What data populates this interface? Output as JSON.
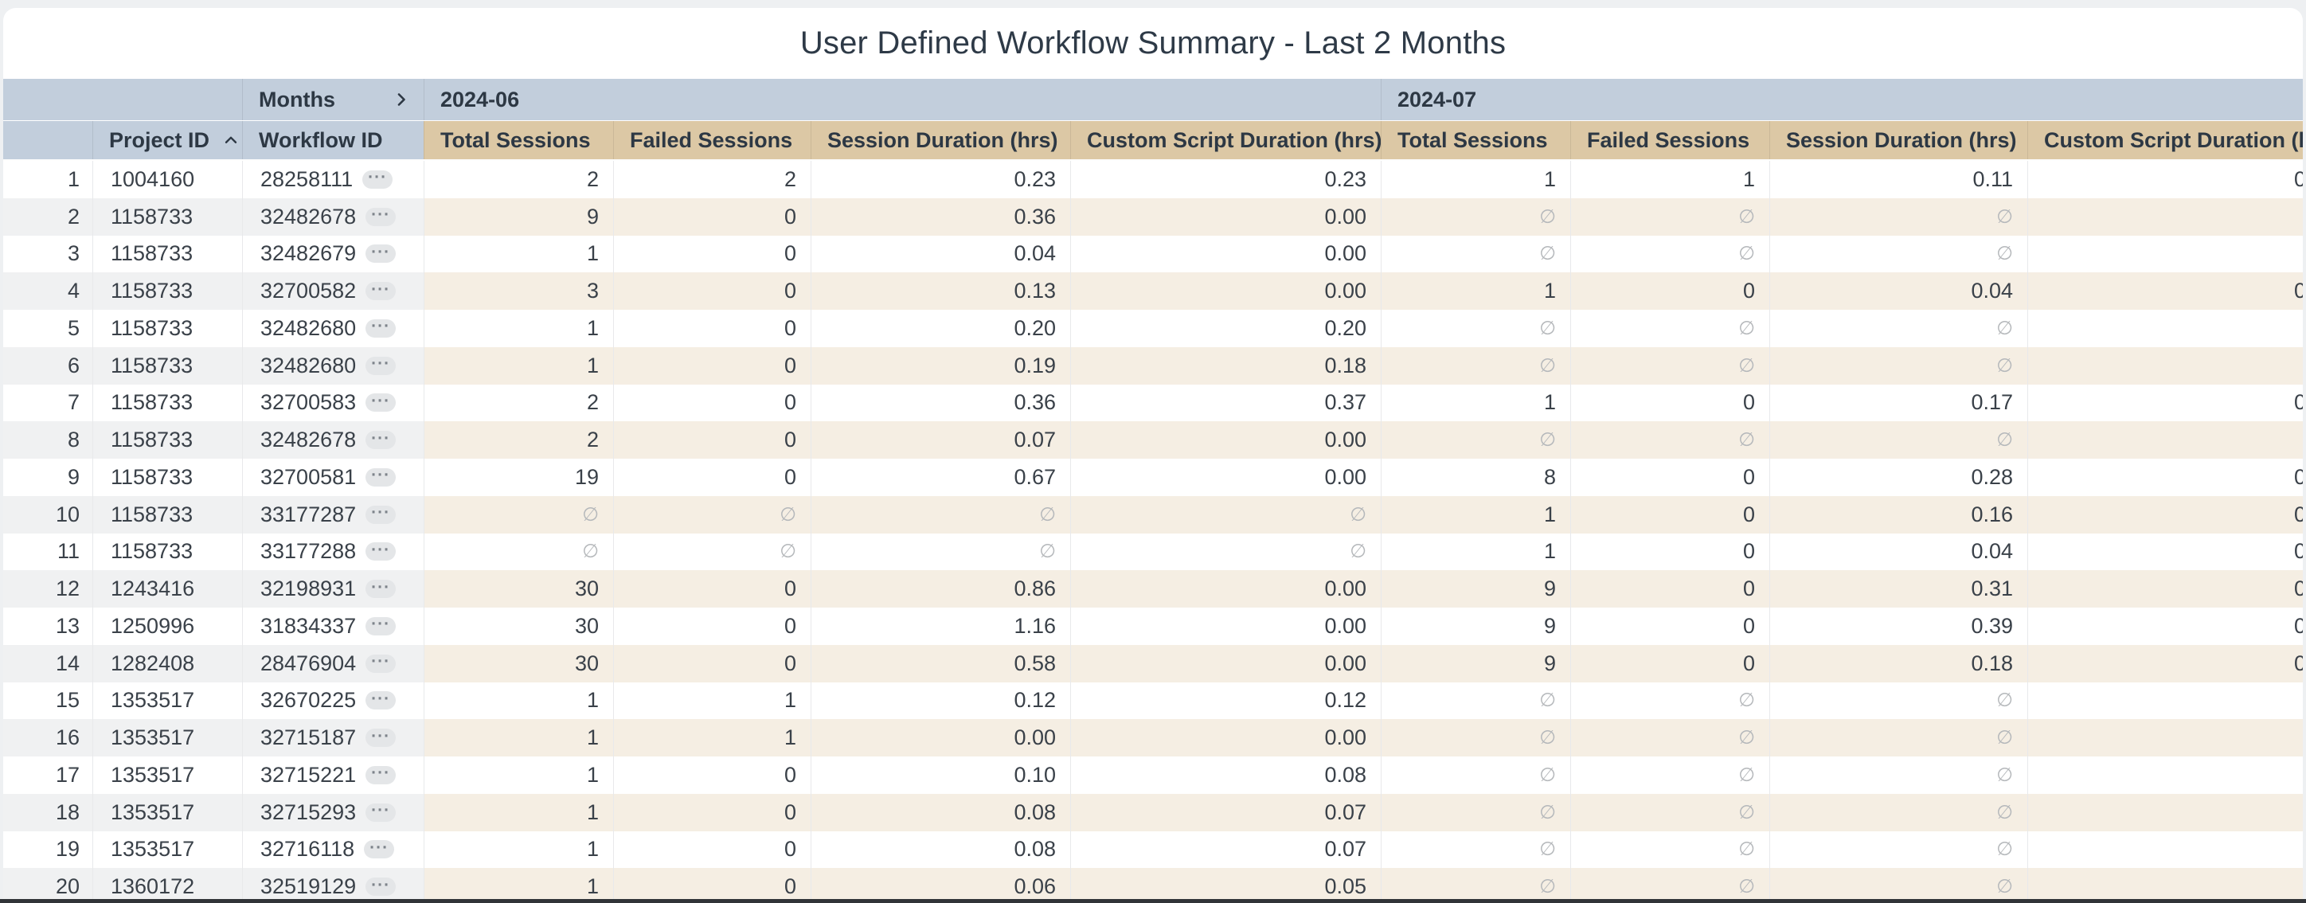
{
  "title": "User Defined Workflow Summary - Last 2 Months",
  "table": {
    "months_label": "Months",
    "month_groups": [
      {
        "label": "2024-06"
      },
      {
        "label": "2024-07"
      }
    ],
    "dim_headers": [
      "Project ID",
      "Workflow ID"
    ],
    "metric_headers": [
      "Total Sessions",
      "Failed Sessions",
      "Session Duration (hrs)",
      "Custom Script Duration (hrs)"
    ],
    "null_symbol": "∅",
    "sort": {
      "column": "Project ID",
      "direction": "ascending"
    },
    "cell_expand_icon": "ellipsis-chip",
    "rows": [
      [
        "1",
        "1004160",
        "28258111",
        "2",
        "2",
        "0.23",
        "0.23",
        "1",
        "1",
        "0.11",
        "0"
      ],
      [
        "2",
        "1158733",
        "32482678",
        "9",
        "0",
        "0.36",
        "0.00",
        "∅",
        "∅",
        "∅",
        ""
      ],
      [
        "3",
        "1158733",
        "32482679",
        "1",
        "0",
        "0.04",
        "0.00",
        "∅",
        "∅",
        "∅",
        ""
      ],
      [
        "4",
        "1158733",
        "32700582",
        "3",
        "0",
        "0.13",
        "0.00",
        "1",
        "0",
        "0.04",
        "0"
      ],
      [
        "5",
        "1158733",
        "32482680",
        "1",
        "0",
        "0.20",
        "0.20",
        "∅",
        "∅",
        "∅",
        ""
      ],
      [
        "6",
        "1158733",
        "32482680",
        "1",
        "0",
        "0.19",
        "0.18",
        "∅",
        "∅",
        "∅",
        ""
      ],
      [
        "7",
        "1158733",
        "32700583",
        "2",
        "0",
        "0.36",
        "0.37",
        "1",
        "0",
        "0.17",
        "0"
      ],
      [
        "8",
        "1158733",
        "32482678",
        "2",
        "0",
        "0.07",
        "0.00",
        "∅",
        "∅",
        "∅",
        ""
      ],
      [
        "9",
        "1158733",
        "32700581",
        "19",
        "0",
        "0.67",
        "0.00",
        "8",
        "0",
        "0.28",
        "0"
      ],
      [
        "10",
        "1158733",
        "33177287",
        "∅",
        "∅",
        "∅",
        "∅",
        "1",
        "0",
        "0.16",
        "0"
      ],
      [
        "11",
        "1158733",
        "33177288",
        "∅",
        "∅",
        "∅",
        "∅",
        "1",
        "0",
        "0.04",
        "0"
      ],
      [
        "12",
        "1243416",
        "32198931",
        "30",
        "0",
        "0.86",
        "0.00",
        "9",
        "0",
        "0.31",
        "0"
      ],
      [
        "13",
        "1250996",
        "31834337",
        "30",
        "0",
        "1.16",
        "0.00",
        "9",
        "0",
        "0.39",
        "0"
      ],
      [
        "14",
        "1282408",
        "28476904",
        "30",
        "0",
        "0.58",
        "0.00",
        "9",
        "0",
        "0.18",
        "0"
      ],
      [
        "15",
        "1353517",
        "32670225",
        "1",
        "1",
        "0.12",
        "0.12",
        "∅",
        "∅",
        "∅",
        ""
      ],
      [
        "16",
        "1353517",
        "32715187",
        "1",
        "1",
        "0.00",
        "0.00",
        "∅",
        "∅",
        "∅",
        ""
      ],
      [
        "17",
        "1353517",
        "32715221",
        "1",
        "0",
        "0.10",
        "0.08",
        "∅",
        "∅",
        "∅",
        ""
      ],
      [
        "18",
        "1353517",
        "32715293",
        "1",
        "0",
        "0.08",
        "0.07",
        "∅",
        "∅",
        "∅",
        ""
      ],
      [
        "19",
        "1353517",
        "32716118",
        "1",
        "0",
        "0.08",
        "0.07",
        "∅",
        "∅",
        "∅",
        ""
      ],
      [
        "20",
        "1360172",
        "32519129",
        "1",
        "0",
        "0.06",
        "0.05",
        "∅",
        "∅",
        "∅",
        ""
      ]
    ]
  },
  "colors": {
    "page_background": "#eef0f2",
    "card_background": "#ffffff",
    "months_header_bg": "#c2cedc",
    "metric_header_bg": "#dcc8a5",
    "even_row_dim_bg": "#f0f1f2",
    "even_row_metric_bg": "#f5eee3",
    "text": "#3a4149",
    "null_text": "#b5b8bb",
    "bottom_bar": "#313438"
  }
}
